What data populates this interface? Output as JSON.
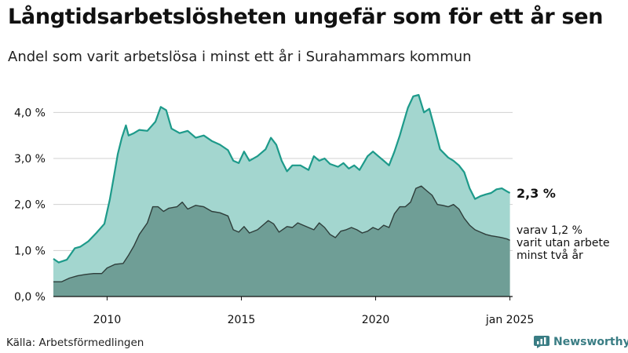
{
  "title": "Långtidsarbetslösheten ungefär som för ett år sen",
  "subtitle": "Andel som varit arbetslösa i minst ett år i Surahammars kommun",
  "source": "Källa: Arbetsförmedlingen",
  "brand": {
    "name": "Newsworthy",
    "icon": "newsworthy-logo-icon"
  },
  "colors": {
    "total_fill": "#a3d6cf",
    "total_line": "#1d9a8a",
    "sub_fill": "#6f9e96",
    "sub_line": "#2e3d3a",
    "grid": "#d0d0d0",
    "axis": "#111111",
    "brand": "#3a7d84"
  },
  "chart_data": {
    "type": "area",
    "x_unit": "year",
    "xlim": [
      2008.0,
      2025.1
    ],
    "ylim": [
      0,
      4.5
    ],
    "y_ticks": [
      0,
      1,
      2,
      3,
      4
    ],
    "y_tick_labels": [
      "0,0 %",
      "1,0 %",
      "2,0 %",
      "3,0 %",
      "4,0 %"
    ],
    "x_ticks": [
      2010,
      2015,
      2020,
      2025
    ],
    "x_tick_labels": [
      "2010",
      "2015",
      "2020",
      "jan 2025"
    ],
    "grid": true,
    "series": [
      {
        "key": "total",
        "end_label": "2,3 %",
        "points": [
          [
            2008.0,
            0.82
          ],
          [
            2008.2,
            0.74
          ],
          [
            2008.5,
            0.8
          ],
          [
            2008.8,
            1.05
          ],
          [
            2009.0,
            1.08
          ],
          [
            2009.3,
            1.2
          ],
          [
            2009.6,
            1.38
          ],
          [
            2009.9,
            1.58
          ],
          [
            2010.1,
            2.1
          ],
          [
            2010.25,
            2.6
          ],
          [
            2010.4,
            3.1
          ],
          [
            2010.55,
            3.45
          ],
          [
            2010.7,
            3.72
          ],
          [
            2010.8,
            3.5
          ],
          [
            2011.0,
            3.55
          ],
          [
            2011.2,
            3.62
          ],
          [
            2011.5,
            3.6
          ],
          [
            2011.8,
            3.8
          ],
          [
            2012.0,
            4.12
          ],
          [
            2012.2,
            4.05
          ],
          [
            2012.4,
            3.65
          ],
          [
            2012.7,
            3.55
          ],
          [
            2013.0,
            3.6
          ],
          [
            2013.3,
            3.45
          ],
          [
            2013.6,
            3.5
          ],
          [
            2013.9,
            3.38
          ],
          [
            2014.2,
            3.3
          ],
          [
            2014.5,
            3.18
          ],
          [
            2014.7,
            2.95
          ],
          [
            2014.9,
            2.9
          ],
          [
            2015.1,
            3.15
          ],
          [
            2015.3,
            2.95
          ],
          [
            2015.6,
            3.05
          ],
          [
            2015.9,
            3.2
          ],
          [
            2016.1,
            3.45
          ],
          [
            2016.3,
            3.3
          ],
          [
            2016.5,
            2.95
          ],
          [
            2016.7,
            2.72
          ],
          [
            2016.9,
            2.85
          ],
          [
            2017.2,
            2.85
          ],
          [
            2017.5,
            2.75
          ],
          [
            2017.7,
            3.05
          ],
          [
            2017.9,
            2.95
          ],
          [
            2018.1,
            3.0
          ],
          [
            2018.3,
            2.88
          ],
          [
            2018.6,
            2.82
          ],
          [
            2018.8,
            2.9
          ],
          [
            2019.0,
            2.78
          ],
          [
            2019.2,
            2.85
          ],
          [
            2019.4,
            2.75
          ],
          [
            2019.7,
            3.05
          ],
          [
            2019.9,
            3.15
          ],
          [
            2020.1,
            3.05
          ],
          [
            2020.3,
            2.95
          ],
          [
            2020.5,
            2.85
          ],
          [
            2020.7,
            3.15
          ],
          [
            2020.9,
            3.5
          ],
          [
            2021.0,
            3.7
          ],
          [
            2021.2,
            4.1
          ],
          [
            2021.4,
            4.35
          ],
          [
            2021.6,
            4.38
          ],
          [
            2021.8,
            4.0
          ],
          [
            2022.0,
            4.08
          ],
          [
            2022.2,
            3.65
          ],
          [
            2022.4,
            3.2
          ],
          [
            2022.7,
            3.02
          ],
          [
            2022.9,
            2.95
          ],
          [
            2023.1,
            2.85
          ],
          [
            2023.3,
            2.7
          ],
          [
            2023.5,
            2.35
          ],
          [
            2023.7,
            2.12
          ],
          [
            2023.9,
            2.18
          ],
          [
            2024.1,
            2.22
          ],
          [
            2024.3,
            2.25
          ],
          [
            2024.5,
            2.33
          ],
          [
            2024.7,
            2.35
          ],
          [
            2024.9,
            2.28
          ],
          [
            2025.0,
            2.25
          ]
        ]
      },
      {
        "key": "long",
        "end_label_lines": [
          "varav 1,2 %",
          "varit utan arbete",
          "minst två år"
        ],
        "points": [
          [
            2008.0,
            0.32
          ],
          [
            2008.3,
            0.32
          ],
          [
            2008.6,
            0.4
          ],
          [
            2008.9,
            0.45
          ],
          [
            2009.2,
            0.48
          ],
          [
            2009.5,
            0.5
          ],
          [
            2009.8,
            0.5
          ],
          [
            2010.0,
            0.62
          ],
          [
            2010.3,
            0.7
          ],
          [
            2010.6,
            0.72
          ],
          [
            2010.8,
            0.9
          ],
          [
            2011.0,
            1.1
          ],
          [
            2011.2,
            1.35
          ],
          [
            2011.5,
            1.6
          ],
          [
            2011.7,
            1.95
          ],
          [
            2011.9,
            1.95
          ],
          [
            2012.1,
            1.85
          ],
          [
            2012.3,
            1.92
          ],
          [
            2012.6,
            1.95
          ],
          [
            2012.8,
            2.05
          ],
          [
            2013.0,
            1.9
          ],
          [
            2013.3,
            1.98
          ],
          [
            2013.6,
            1.95
          ],
          [
            2013.9,
            1.85
          ],
          [
            2014.2,
            1.82
          ],
          [
            2014.5,
            1.75
          ],
          [
            2014.7,
            1.45
          ],
          [
            2014.9,
            1.4
          ],
          [
            2015.1,
            1.52
          ],
          [
            2015.3,
            1.38
          ],
          [
            2015.6,
            1.45
          ],
          [
            2015.8,
            1.55
          ],
          [
            2016.0,
            1.65
          ],
          [
            2016.2,
            1.58
          ],
          [
            2016.4,
            1.4
          ],
          [
            2016.7,
            1.52
          ],
          [
            2016.9,
            1.5
          ],
          [
            2017.1,
            1.6
          ],
          [
            2017.3,
            1.55
          ],
          [
            2017.5,
            1.5
          ],
          [
            2017.7,
            1.45
          ],
          [
            2017.9,
            1.6
          ],
          [
            2018.1,
            1.5
          ],
          [
            2018.3,
            1.35
          ],
          [
            2018.5,
            1.28
          ],
          [
            2018.7,
            1.42
          ],
          [
            2018.9,
            1.45
          ],
          [
            2019.1,
            1.5
          ],
          [
            2019.3,
            1.45
          ],
          [
            2019.5,
            1.38
          ],
          [
            2019.7,
            1.42
          ],
          [
            2019.9,
            1.5
          ],
          [
            2020.1,
            1.45
          ],
          [
            2020.3,
            1.55
          ],
          [
            2020.5,
            1.5
          ],
          [
            2020.7,
            1.8
          ],
          [
            2020.9,
            1.95
          ],
          [
            2021.1,
            1.95
          ],
          [
            2021.3,
            2.05
          ],
          [
            2021.5,
            2.35
          ],
          [
            2021.7,
            2.4
          ],
          [
            2021.9,
            2.3
          ],
          [
            2022.1,
            2.2
          ],
          [
            2022.3,
            2.0
          ],
          [
            2022.5,
            1.98
          ],
          [
            2022.7,
            1.95
          ],
          [
            2022.9,
            2.0
          ],
          [
            2023.1,
            1.9
          ],
          [
            2023.3,
            1.7
          ],
          [
            2023.5,
            1.55
          ],
          [
            2023.7,
            1.45
          ],
          [
            2023.9,
            1.4
          ],
          [
            2024.1,
            1.35
          ],
          [
            2024.3,
            1.32
          ],
          [
            2024.5,
            1.3
          ],
          [
            2024.7,
            1.28
          ],
          [
            2024.9,
            1.25
          ],
          [
            2025.0,
            1.22
          ]
        ]
      }
    ]
  }
}
